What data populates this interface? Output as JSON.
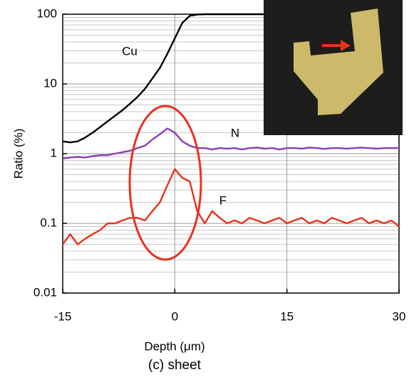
{
  "chart_data": {
    "type": "line",
    "x_label": "Depth (μm)",
    "y_label": "Ratio (%)",
    "caption": "(c) sheet",
    "x": [
      -15,
      -14,
      -13,
      -12,
      -11,
      -10,
      -9,
      -8,
      -7,
      -6,
      -5,
      -4,
      -3,
      -2,
      -1,
      0,
      1,
      2,
      3,
      4,
      5,
      6,
      7,
      8,
      9,
      10,
      11,
      12,
      13,
      14,
      15,
      16,
      17,
      18,
      19,
      20,
      21,
      22,
      23,
      24,
      25,
      26,
      27,
      28,
      29,
      30
    ],
    "series": [
      {
        "name": "Cu",
        "color": "#000000",
        "values": [
          1.5,
          1.45,
          1.5,
          1.7,
          2.0,
          2.4,
          2.9,
          3.5,
          4.2,
          5.2,
          6.5,
          8.5,
          12,
          17,
          27,
          45,
          75,
          95,
          99,
          100,
          100,
          100,
          100,
          100,
          100,
          100,
          100,
          100,
          100,
          100,
          100,
          100,
          100,
          100,
          100,
          100,
          100,
          100,
          100,
          100,
          100,
          100,
          100,
          100,
          100,
          100
        ]
      },
      {
        "name": "N",
        "color": "#8a3fb5",
        "values": [
          0.85,
          0.88,
          0.9,
          0.88,
          0.92,
          0.95,
          0.95,
          1.0,
          1.05,
          1.1,
          1.2,
          1.3,
          1.6,
          1.9,
          2.3,
          2.0,
          1.5,
          1.3,
          1.2,
          1.2,
          1.15,
          1.2,
          1.18,
          1.2,
          1.15,
          1.2,
          1.22,
          1.18,
          1.2,
          1.15,
          1.2,
          1.2,
          1.18,
          1.22,
          1.2,
          1.17,
          1.2,
          1.2,
          1.18,
          1.2,
          1.22,
          1.2,
          1.18,
          1.2,
          1.2,
          1.2
        ]
      },
      {
        "name": "F",
        "color": "#e8321e",
        "values": [
          0.05,
          0.07,
          0.05,
          0.06,
          0.07,
          0.08,
          0.1,
          0.1,
          0.11,
          0.12,
          0.12,
          0.11,
          0.15,
          0.2,
          0.35,
          0.6,
          0.45,
          0.4,
          0.15,
          0.1,
          0.15,
          0.12,
          0.1,
          0.11,
          0.1,
          0.12,
          0.11,
          0.1,
          0.11,
          0.12,
          0.1,
          0.11,
          0.12,
          0.1,
          0.11,
          0.1,
          0.12,
          0.11,
          0.1,
          0.11,
          0.12,
          0.1,
          0.11,
          0.1,
          0.11,
          0.09
        ]
      }
    ],
    "xlim": [
      -15,
      30
    ],
    "xticks": [
      -15,
      0,
      15,
      30
    ],
    "ylim": [
      0.01,
      100
    ],
    "yticks": [
      0.01,
      0.1,
      1,
      10,
      100
    ],
    "log_y": true,
    "grid": true
  }
}
